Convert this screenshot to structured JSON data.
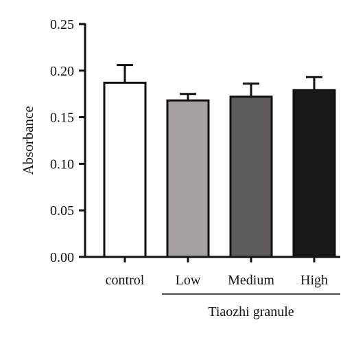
{
  "chart_data": {
    "type": "bar",
    "title": "",
    "xlabel": "",
    "ylabel": "Absorbance",
    "ylim": [
      0,
      0.25
    ],
    "yticks": [
      "0.00",
      "0.05",
      "0.10",
      "0.15",
      "0.20",
      "0.25"
    ],
    "categories": [
      "control",
      "Low",
      "Medium",
      "High"
    ],
    "values": [
      0.187,
      0.168,
      0.172,
      0.179
    ],
    "errors": [
      0.019,
      0.007,
      0.014,
      0.014
    ],
    "colors": [
      "#ffffff",
      "#a59fa1",
      "#605b5c",
      "#181818"
    ],
    "group_label": "Tiaozhi granule",
    "group_members": [
      "Low",
      "Medium",
      "High"
    ],
    "grid": false,
    "legend": "none"
  }
}
